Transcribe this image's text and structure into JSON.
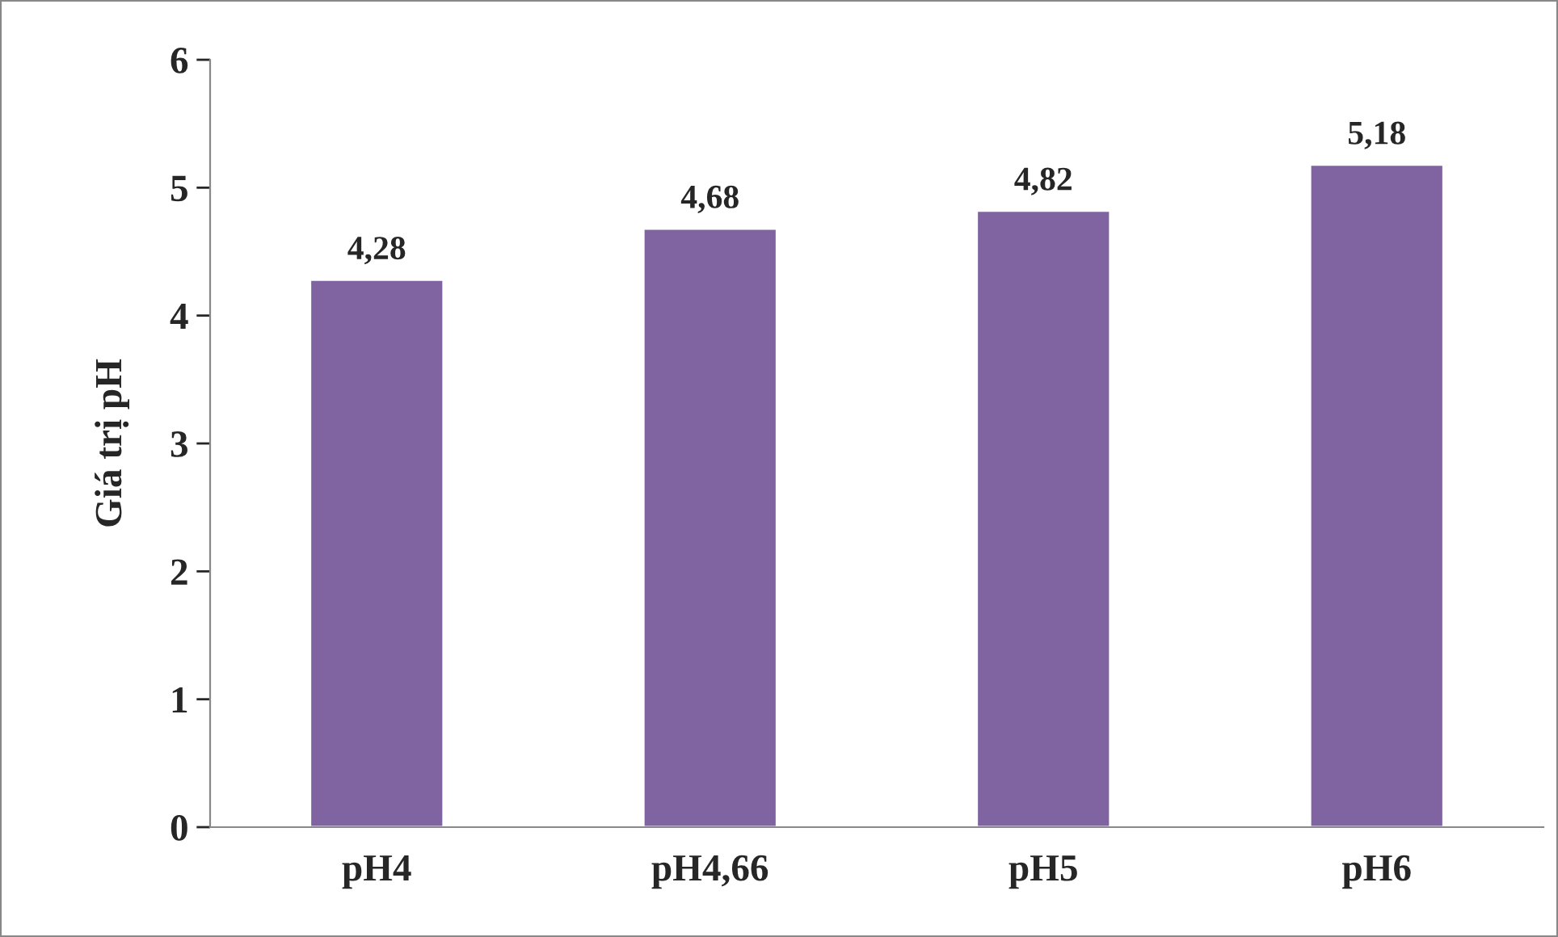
{
  "chart_data": {
    "type": "bar",
    "ylabel": "Giá trị pH",
    "categories": [
      "pH4",
      "pH4,66",
      "pH5",
      "pH6"
    ],
    "values": [
      4.28,
      4.68,
      4.82,
      5.18
    ],
    "value_labels": [
      "4,28",
      "4,68",
      "4,82",
      "5,18"
    ],
    "color": "#8064a2",
    "ylim": [
      0,
      6
    ],
    "yticks": [
      0,
      1,
      2,
      3,
      4,
      5,
      6
    ],
    "grid": false,
    "legend": false
  }
}
